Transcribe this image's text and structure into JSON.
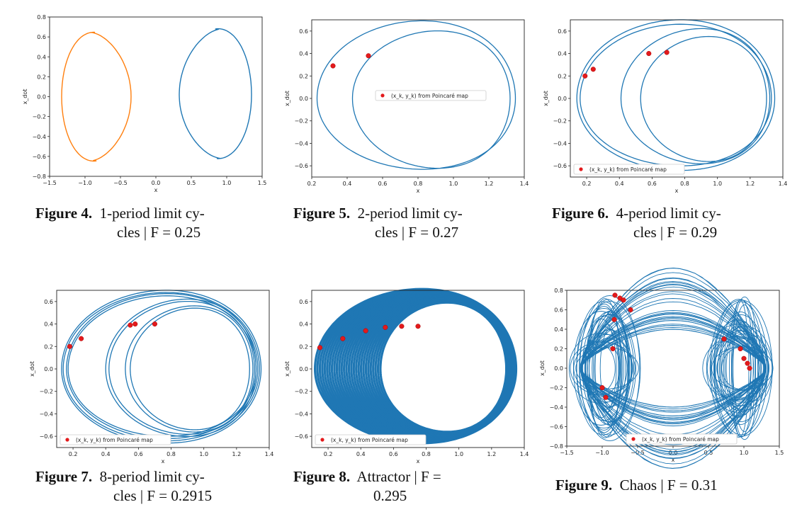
{
  "chart_data": [
    {
      "type": "line",
      "id": "fig4",
      "xlabel": "x",
      "ylabel": "x_dot",
      "xlim": [
        -1.5,
        1.5
      ],
      "ylim": [
        -0.8,
        0.8
      ],
      "xticks": [
        "−1.5",
        "−1.0",
        "−0.5",
        "0.0",
        "0.5",
        "1.0",
        "1.5"
      ],
      "yticks": [
        "−0.8",
        "−0.6",
        "−0.4",
        "−0.2",
        "0.0",
        "0.2",
        "0.4",
        "0.6",
        "0.8"
      ],
      "series": [
        {
          "color": "#ff7f0e",
          "cx": -0.85,
          "cy": 0,
          "ax": 0.5,
          "ay": 0.66
        },
        {
          "color": "#1f77b4",
          "cx": 0.85,
          "cy": 0.02,
          "ax": 0.5,
          "ay": 0.66
        }
      ],
      "caption_label": "Figure 4.",
      "caption_line1": "1-period limit cy-",
      "caption_line2": "cles | F = 0.25"
    },
    {
      "type": "line",
      "id": "fig5",
      "xlabel": "x",
      "ylabel": "x_dot",
      "xlim": [
        0.2,
        1.4
      ],
      "ylim": [
        -0.7,
        0.7
      ],
      "xticks": [
        "0.2",
        "0.4",
        "0.6",
        "0.8",
        "1.0",
        "1.2",
        "1.4"
      ],
      "yticks": [
        "−0.6",
        "−0.4",
        "−0.2",
        "0.0",
        "0.2",
        "0.4",
        "0.6"
      ],
      "legend": "(x_k, y_k) from Poincaré map",
      "legend_pos": "center",
      "loops": 2,
      "points": [
        [
          0.32,
          0.29
        ],
        [
          0.52,
          0.38
        ]
      ],
      "caption_label": "Figure 5.",
      "caption_line1": "2-period limit cy-",
      "caption_line2": "cles | F = 0.27"
    },
    {
      "type": "line",
      "id": "fig6",
      "xlabel": "x",
      "ylabel": "x_dot",
      "xlim": [
        0.1,
        1.4
      ],
      "ylim": [
        -0.7,
        0.7
      ],
      "xticks": [
        "0.2",
        "0.4",
        "0.6",
        "0.8",
        "1.0",
        "1.2",
        "1.4"
      ],
      "yticks": [
        "−0.6",
        "−0.4",
        "−0.2",
        "0.0",
        "0.2",
        "0.4",
        "0.6"
      ],
      "legend": "(x_k, y_k) from Poincaré map",
      "legend_pos": "lower left",
      "loops": 4,
      "points": [
        [
          0.19,
          0.2
        ],
        [
          0.24,
          0.26
        ],
        [
          0.58,
          0.4
        ],
        [
          0.69,
          0.41
        ]
      ],
      "caption_label": "Figure 6.",
      "caption_line1": "4-period limit cy-",
      "caption_line2": "cles | F = 0.29"
    },
    {
      "type": "line",
      "id": "fig7",
      "xlabel": "x",
      "ylabel": "x_dot",
      "xlim": [
        0.1,
        1.4
      ],
      "ylim": [
        -0.7,
        0.7
      ],
      "xticks": [
        "0.2",
        "0.4",
        "0.6",
        "0.8",
        "1.0",
        "1.2",
        "1.4"
      ],
      "yticks": [
        "−0.6",
        "−0.4",
        "−0.2",
        "0.0",
        "0.2",
        "0.4",
        "0.6"
      ],
      "legend": "(x_k, y_k) from Poincaré map",
      "legend_pos": "lower left",
      "loops": 8,
      "points": [
        [
          0.18,
          0.2
        ],
        [
          0.25,
          0.27
        ],
        [
          0.55,
          0.39
        ],
        [
          0.58,
          0.4
        ],
        [
          0.7,
          0.4
        ]
      ],
      "caption_label": "Figure 7.",
      "caption_line1": "8-period limit cy-",
      "caption_line2": "cles | F = 0.2915"
    },
    {
      "type": "area",
      "id": "fig8",
      "xlabel": "x",
      "ylabel": "x_dot",
      "xlim": [
        0.1,
        1.4
      ],
      "ylim": [
        -0.7,
        0.7
      ],
      "xticks": [
        "0.2",
        "0.4",
        "0.6",
        "0.8",
        "1.0",
        "1.2",
        "1.4"
      ],
      "yticks": [
        "−0.6",
        "−0.4",
        "−0.2",
        "0.0",
        "0.2",
        "0.4",
        "0.6"
      ],
      "legend": "(x_k, y_k) from Poincaré map",
      "legend_pos": "lower left",
      "points": [
        [
          0.15,
          0.19
        ],
        [
          0.29,
          0.27
        ],
        [
          0.43,
          0.34
        ],
        [
          0.55,
          0.37
        ],
        [
          0.65,
          0.38
        ],
        [
          0.75,
          0.38
        ]
      ],
      "caption_label": "Figure 8.",
      "caption_line1": "Attractor | F =",
      "caption_line2": "0.295"
    },
    {
      "type": "line",
      "id": "fig9",
      "xlabel": "x",
      "ylabel": "x_dot",
      "xlim": [
        -1.5,
        1.5
      ],
      "ylim": [
        -0.8,
        0.8
      ],
      "xticks": [
        "−1.5",
        "−1.0",
        "−0.5",
        "0.0",
        "0.5",
        "1.0",
        "1.5"
      ],
      "yticks": [
        "−0.8",
        "−0.6",
        "−0.4",
        "−0.2",
        "0.0",
        "0.2",
        "0.4",
        "0.6",
        "0.8"
      ],
      "legend": "(x_k, y_k) from Poincaré map",
      "legend_pos": "lower center",
      "points": [
        [
          -0.82,
          0.75
        ],
        [
          -0.75,
          0.72
        ],
        [
          -0.7,
          0.7
        ],
        [
          -0.6,
          0.6
        ],
        [
          -0.83,
          0.5
        ],
        [
          -0.85,
          0.2
        ],
        [
          -1.0,
          -0.2
        ],
        [
          -0.95,
          -0.3
        ],
        [
          0.72,
          0.3
        ],
        [
          0.95,
          0.2
        ],
        [
          1.0,
          0.1
        ],
        [
          1.05,
          0.05
        ],
        [
          1.08,
          0.0
        ]
      ],
      "caption_label": "Figure 9.",
      "caption_line1": "Chaos | F = 0.31",
      "caption_line2": ""
    }
  ]
}
